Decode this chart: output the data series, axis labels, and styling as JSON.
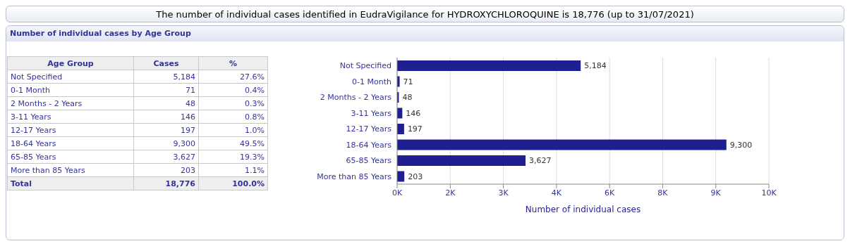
{
  "chart_data": [
    {
      "type": "other",
      "title": "The number of individual cases identified in EudraVigilance for HYDROXYCHLOROQUINE is 18,776 (up to 31/07/2021)",
      "subtitle": "Number of individual cases by Age Group",
      "categories": [
        "Not Specified",
        "0-1 Month",
        "2 Months - 2 Years",
        "3-11 Years",
        "12-17 Years",
        "18-64 Years",
        "65-85 Years",
        "More than 85 Years"
      ],
      "value_labels": [
        "5,184",
        "71",
        "48",
        "146",
        "197",
        "9,300",
        "3,627",
        "203"
      ],
      "annotations": [
        "Age Group",
        "Cases",
        "%",
        "27.6%",
        "0.4%",
        "0.3%",
        "0.8%",
        "1.0%",
        "49.5%",
        "19.3%",
        "1.1%",
        "Total",
        "18,776",
        "100.0%"
      ]
    },
    {
      "type": "bar",
      "orientation": "horizontal",
      "categories": [
        "Not Specified",
        "0-1 Month",
        "2 Months - 2 Years",
        "3-11 Years",
        "12-17 Years",
        "18-64 Years",
        "65-85 Years",
        "More than 85 Years"
      ],
      "values": [
        5184,
        71,
        48,
        146,
        197,
        9300,
        3627,
        203
      ],
      "color": "#1f1f8f",
      "xlabel": "Number of individual cases",
      "xlim": [
        0,
        10500
      ],
      "xticks": [
        {
          "value": 0,
          "label": "0K"
        },
        {
          "value": 1500,
          "label": "2K"
        },
        {
          "value": 3000,
          "label": "3K"
        },
        {
          "value": 4500,
          "label": "4K"
        },
        {
          "value": 6000,
          "label": "6K"
        },
        {
          "value": 7500,
          "label": "8K"
        },
        {
          "value": 9000,
          "label": "9K"
        },
        {
          "value": 10500,
          "label": "10K"
        }
      ],
      "grid": "x",
      "value_labels": [
        "5,184",
        "71",
        "48",
        "146",
        "197",
        "9,300",
        "3,627",
        "203"
      ]
    }
  ]
}
